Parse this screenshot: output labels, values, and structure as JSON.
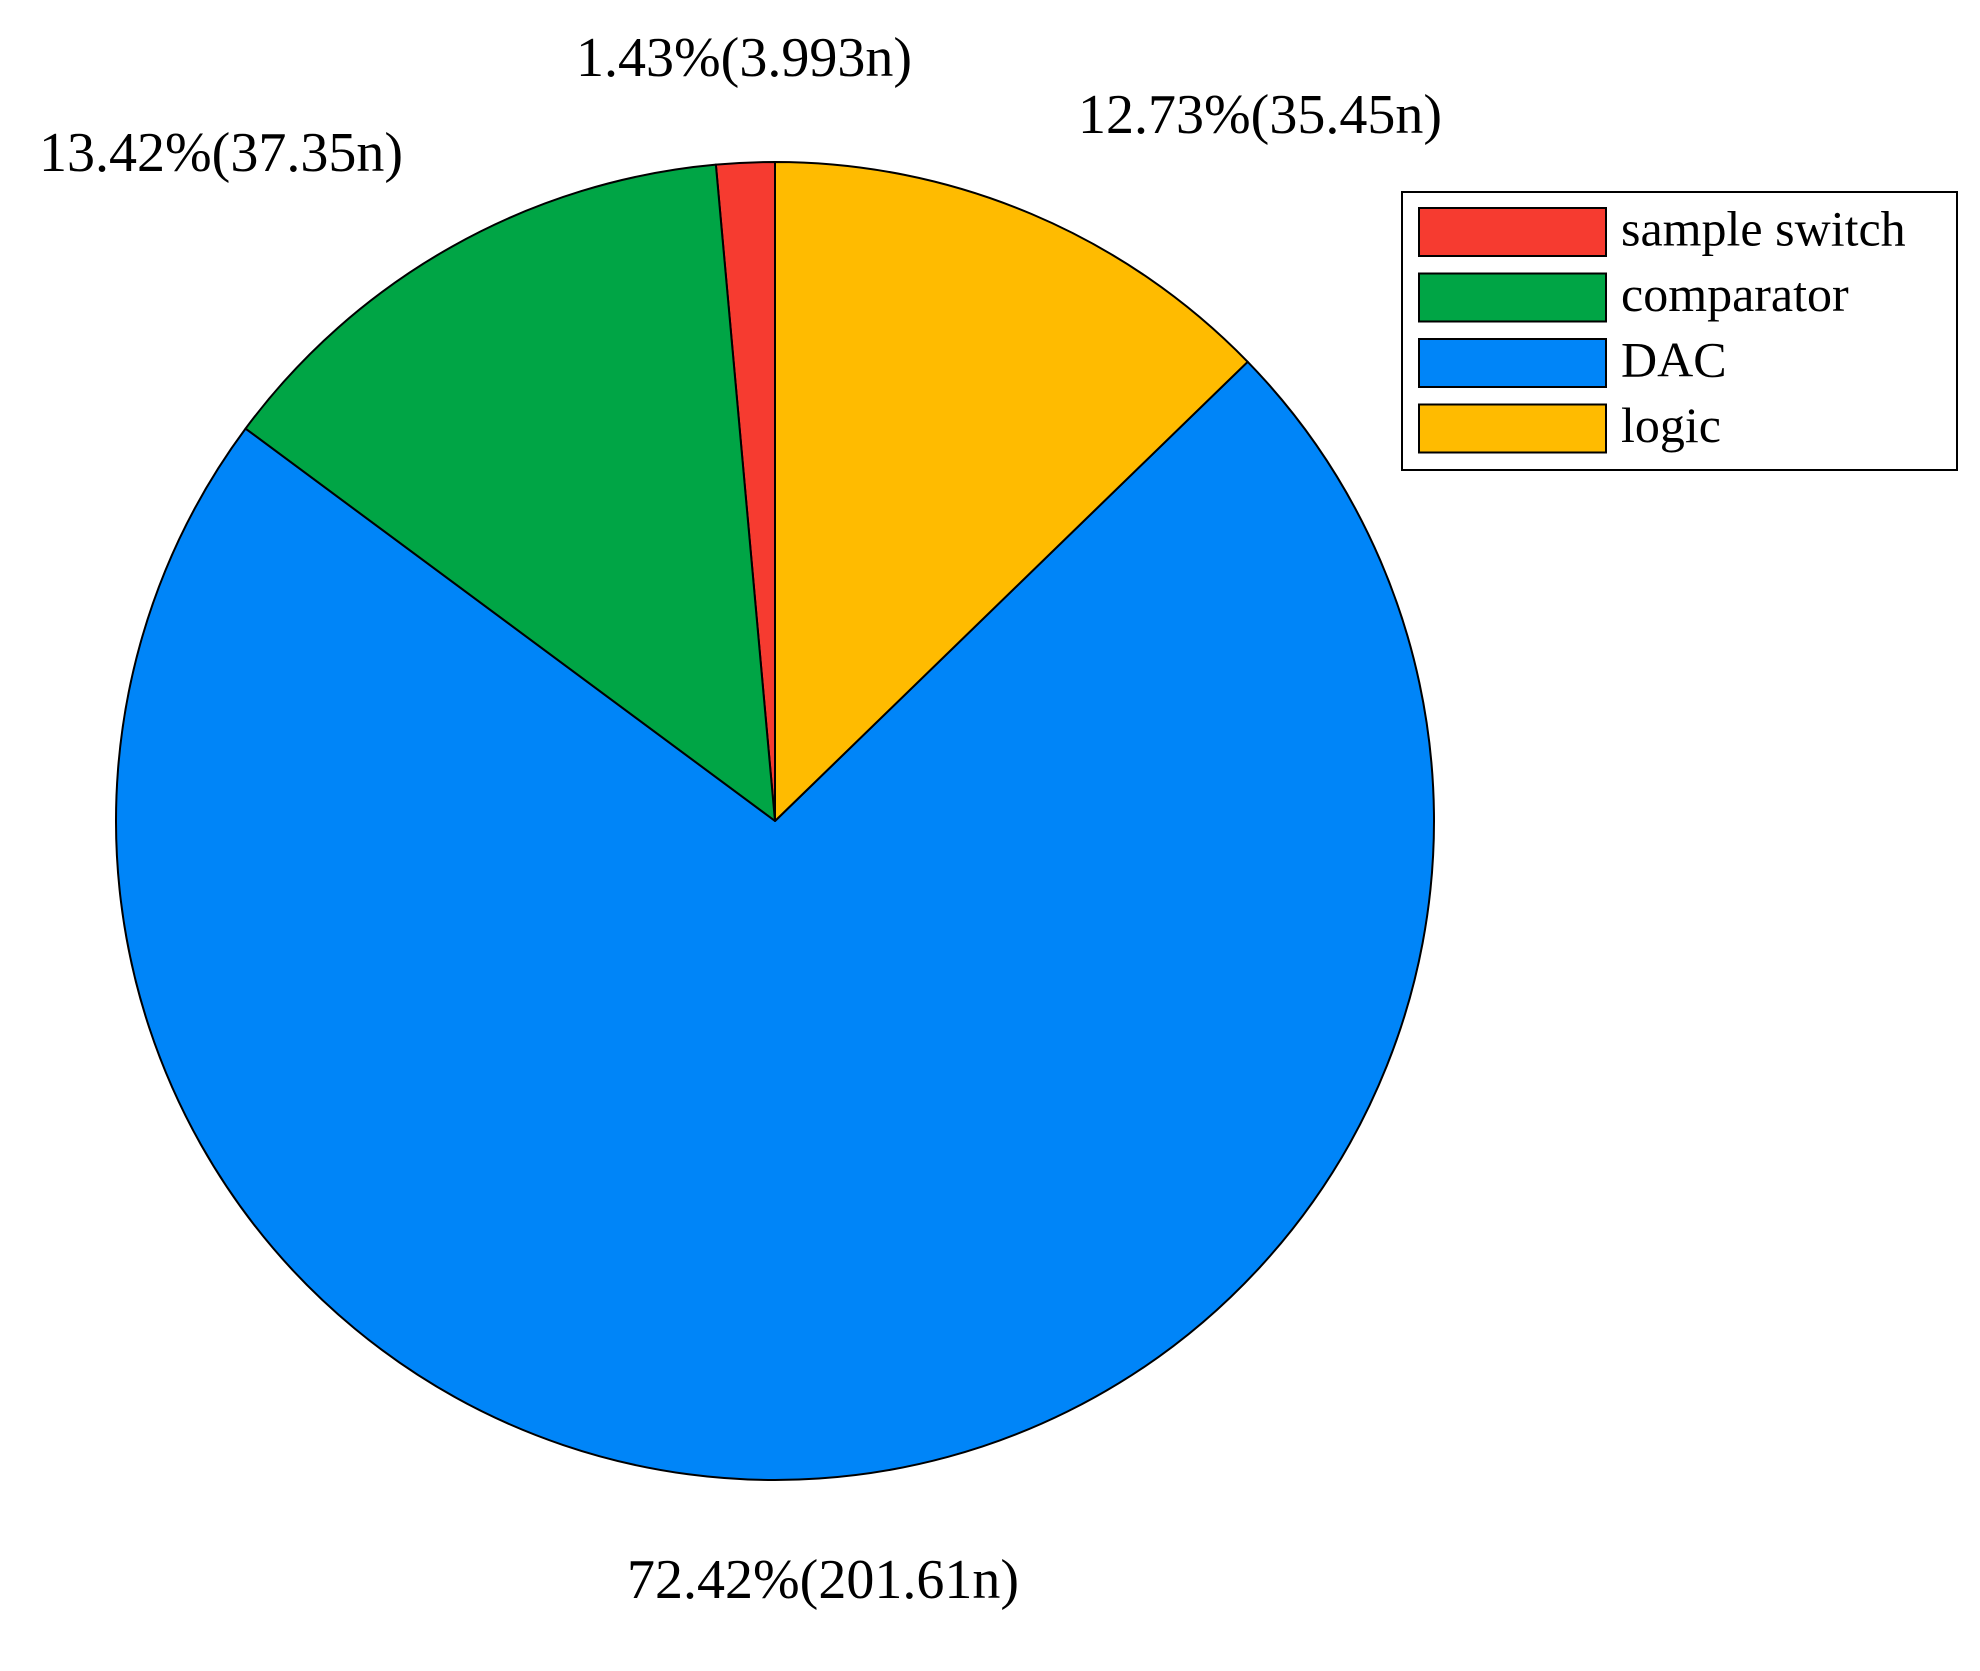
{
  "chart_data": {
    "type": "pie",
    "categories": [
      "sample switch",
      "comparator",
      "DAC",
      "logic"
    ],
    "values": [
      1.43,
      13.42,
      72.42,
      12.73
    ],
    "value_labels": [
      "1.43%(3.993n)",
      "13.42%(37.35n)",
      "72.42%(201.61n)",
      "12.73%(35.45n)"
    ],
    "colors": [
      "#f63b30",
      "#00a545",
      "#0085f8",
      "#ffbb00"
    ],
    "direction": "counterclockwise",
    "legend": "upper right"
  }
}
